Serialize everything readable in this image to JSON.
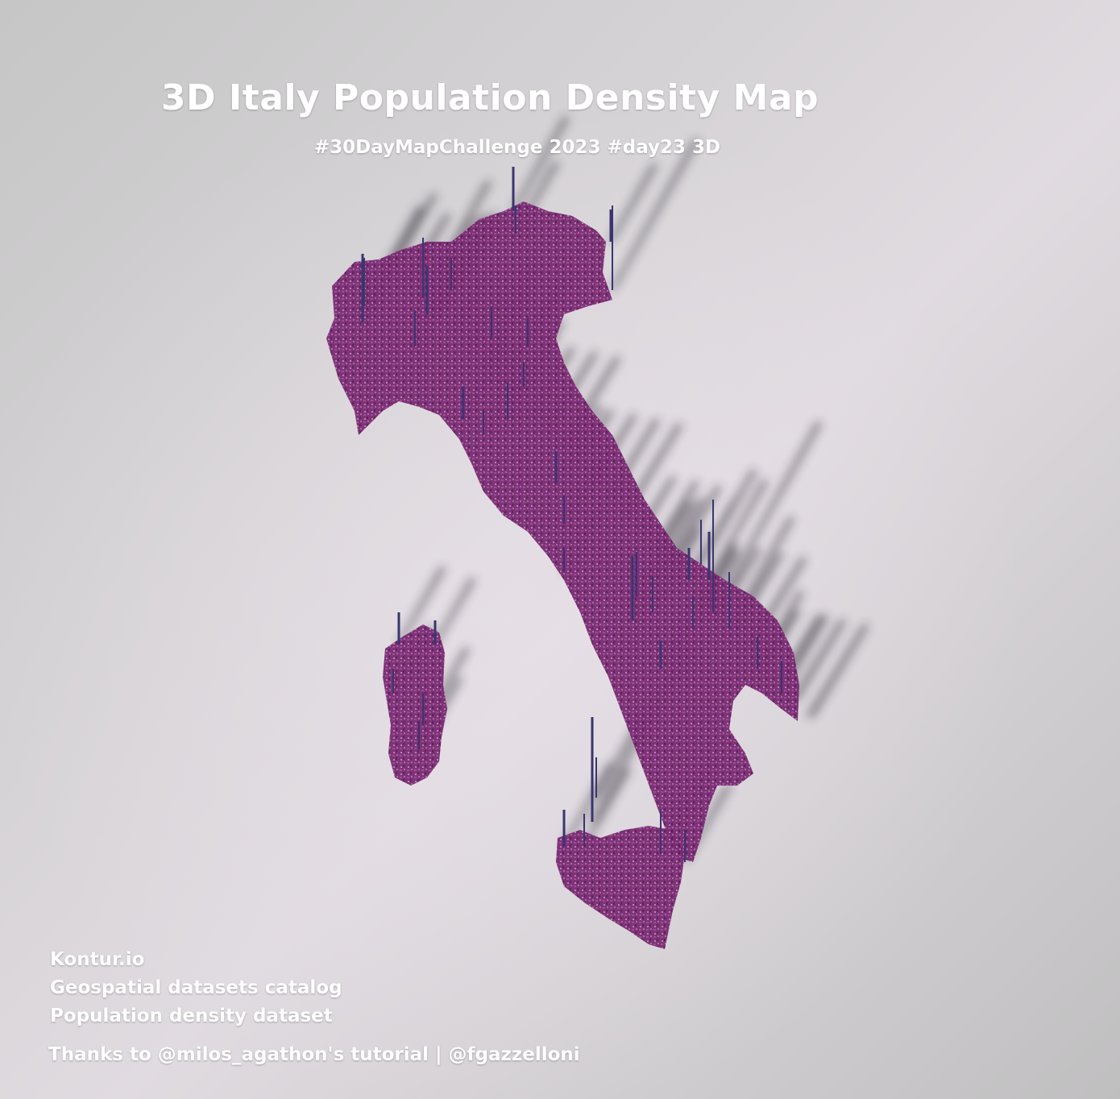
{
  "title": "3D Italy Population Density Map",
  "subtitle": "#30DayMapChallenge 2023 #day23 3D",
  "credits": {
    "source": "Kontur.io",
    "catalog": "Geospatial datasets catalog",
    "dataset": "Population density dataset",
    "thanks": "Thanks to @milos_agathon's tutorial | @fgazzelloni"
  },
  "colors": {
    "density_fill": "#7a2a72",
    "density_highlight": "#a0449a",
    "peak_color": "#3a3570",
    "shadow": "#2a2530",
    "text": "#ffffff"
  }
}
